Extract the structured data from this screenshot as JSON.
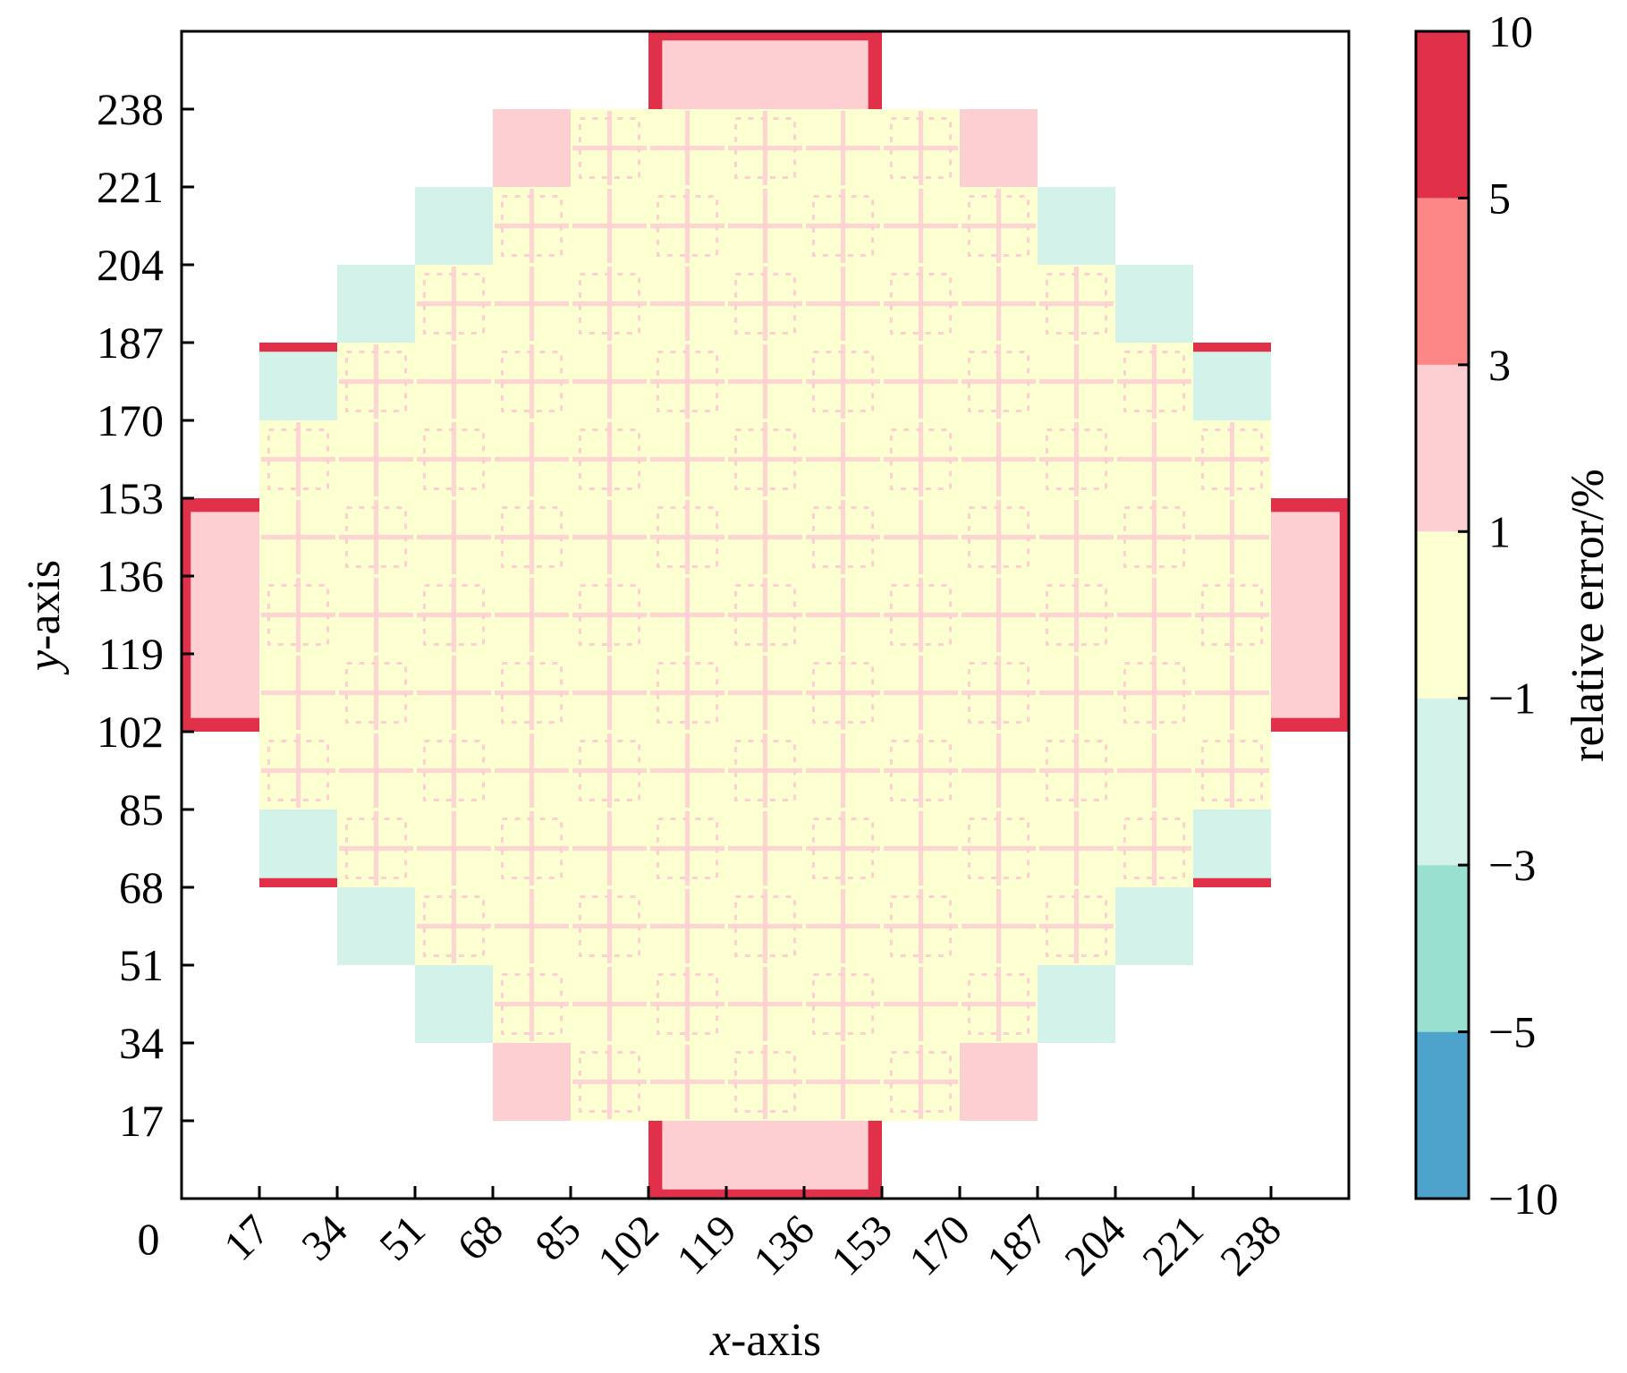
{
  "chart_data": {
    "type": "heatmap",
    "xlabel": {
      "italic": "x",
      "rest": "-axis"
    },
    "ylabel": {
      "italic": "y",
      "rest": "-axis"
    },
    "xlim": [
      0,
      255
    ],
    "ylim": [
      0,
      255
    ],
    "origin_label": "0",
    "xticks": [
      17,
      34,
      51,
      68,
      85,
      102,
      119,
      136,
      153,
      170,
      187,
      204,
      221,
      238
    ],
    "yticks": [
      17,
      34,
      51,
      68,
      85,
      102,
      119,
      136,
      153,
      170,
      187,
      204,
      221,
      238
    ],
    "xtick_labels": [
      "17",
      "34",
      "51",
      "68",
      "85",
      "102",
      "119",
      "136",
      "153",
      "170",
      "187",
      "204",
      "221",
      "238"
    ],
    "ytick_labels": [
      "17",
      "34",
      "51",
      "68",
      "85",
      "102",
      "119",
      "136",
      "153",
      "170",
      "187",
      "204",
      "221",
      "238"
    ],
    "assembly_size": 17,
    "colorbar": {
      "label": "relative error/%",
      "bounds": [
        -10,
        -5,
        -3,
        -1,
        1,
        3,
        5,
        10
      ],
      "tick_labels": [
        "−10",
        "−5",
        "−3",
        "−1",
        "1",
        "3",
        "5",
        "10"
      ],
      "colors": [
        "#4da3cc",
        "#99e0d1",
        "#d3f2e9",
        "#fcffd0",
        "#fdcfd3",
        "#fd8686",
        "#e0304a"
      ]
    },
    "rows": [
      {
        "y": [
          0,
          17
        ],
        "x": [
          102,
          153
        ]
      },
      {
        "y": [
          17,
          34
        ],
        "x": [
          68,
          187
        ]
      },
      {
        "y": [
          34,
          51
        ],
        "x": [
          51,
          204
        ]
      },
      {
        "y": [
          51,
          68
        ],
        "x": [
          34,
          221
        ]
      },
      {
        "y": [
          68,
          102
        ],
        "x": [
          17,
          238
        ]
      },
      {
        "y": [
          102,
          153
        ],
        "x": [
          0,
          255
        ]
      },
      {
        "y": [
          153,
          187
        ],
        "x": [
          17,
          238
        ]
      },
      {
        "y": [
          187,
          204
        ],
        "x": [
          34,
          221
        ]
      },
      {
        "y": [
          204,
          221
        ],
        "x": [
          51,
          204
        ]
      },
      {
        "y": [
          221,
          238
        ],
        "x": [
          68,
          187
        ]
      },
      {
        "y": [
          238,
          255
        ],
        "x": [
          102,
          153
        ]
      }
    ],
    "regions": [
      {
        "x": [
          102,
          153
        ],
        "y": [
          0,
          17
        ],
        "level": "1 to 3"
      },
      {
        "x": [
          102,
          153
        ],
        "y": [
          238,
          255
        ],
        "level": "1 to 3"
      },
      {
        "x": [
          0,
          17
        ],
        "y": [
          102,
          153
        ],
        "level": "1 to 3"
      },
      {
        "x": [
          238,
          255
        ],
        "y": [
          102,
          153
        ],
        "level": "1 to 3"
      },
      {
        "x": [
          68,
          85
        ],
        "y": [
          17,
          34
        ],
        "level": "1 to 3"
      },
      {
        "x": [
          170,
          187
        ],
        "y": [
          17,
          34
        ],
        "level": "1 to 3"
      },
      {
        "x": [
          68,
          85
        ],
        "y": [
          221,
          238
        ],
        "level": "1 to 3"
      },
      {
        "x": [
          170,
          187
        ],
        "y": [
          221,
          238
        ],
        "level": "1 to 3"
      },
      {
        "x": [
          51,
          68
        ],
        "y": [
          34,
          51
        ],
        "level": "-3 to -1"
      },
      {
        "x": [
          187,
          204
        ],
        "y": [
          34,
          51
        ],
        "level": "-3 to -1"
      },
      {
        "x": [
          51,
          68
        ],
        "y": [
          204,
          221
        ],
        "level": "-3 to -1"
      },
      {
        "x": [
          187,
          204
        ],
        "y": [
          204,
          221
        ],
        "level": "-3 to -1"
      },
      {
        "x": [
          34,
          51
        ],
        "y": [
          51,
          68
        ],
        "level": "-3 to -1"
      },
      {
        "x": [
          204,
          221
        ],
        "y": [
          51,
          68
        ],
        "level": "-3 to -1"
      },
      {
        "x": [
          34,
          51
        ],
        "y": [
          187,
          204
        ],
        "level": "-3 to -1"
      },
      {
        "x": [
          204,
          221
        ],
        "y": [
          187,
          204
        ],
        "level": "-3 to -1"
      },
      {
        "x": [
          17,
          34
        ],
        "y": [
          68,
          85
        ],
        "level": "-3 to -1"
      },
      {
        "x": [
          221,
          238
        ],
        "y": [
          68,
          85
        ],
        "level": "-3 to -1"
      },
      {
        "x": [
          17,
          34
        ],
        "y": [
          170,
          187
        ],
        "level": "-3 to -1"
      },
      {
        "x": [
          221,
          238
        ],
        "y": [
          170,
          187
        ],
        "level": "-3 to -1"
      }
    ],
    "edge_bands": [
      {
        "x": [
          102,
          153
        ],
        "y": [
          0,
          2
        ],
        "level": "5 to 10"
      },
      {
        "x": [
          102,
          153
        ],
        "y": [
          253,
          255
        ],
        "level": "5 to 10"
      },
      {
        "x": [
          0,
          2
        ],
        "y": [
          102,
          153
        ],
        "level": "5 to 10"
      },
      {
        "x": [
          253,
          255
        ],
        "y": [
          102,
          153
        ],
        "level": "5 to 10"
      },
      {
        "x": [
          0,
          17
        ],
        "y": [
          102,
          105
        ],
        "level": "5 to 10"
      },
      {
        "x": [
          0,
          17
        ],
        "y": [
          150,
          153
        ],
        "level": "5 to 10"
      },
      {
        "x": [
          238,
          255
        ],
        "y": [
          102,
          105
        ],
        "level": "5 to 10"
      },
      {
        "x": [
          238,
          255
        ],
        "y": [
          150,
          153
        ],
        "level": "5 to 10"
      },
      {
        "x": [
          102,
          105
        ],
        "y": [
          0,
          17
        ],
        "level": "5 to 10"
      },
      {
        "x": [
          150,
          153
        ],
        "y": [
          0,
          17
        ],
        "level": "5 to 10"
      },
      {
        "x": [
          102,
          105
        ],
        "y": [
          238,
          255
        ],
        "level": "5 to 10"
      },
      {
        "x": [
          150,
          153
        ],
        "y": [
          238,
          255
        ],
        "level": "5 to 10"
      },
      {
        "x": [
          17,
          34
        ],
        "y": [
          68,
          70
        ],
        "level": "5 to 10"
      },
      {
        "x": [
          221,
          238
        ],
        "y": [
          68,
          70
        ],
        "level": "5 to 10"
      },
      {
        "x": [
          17,
          34
        ],
        "y": [
          185,
          187
        ],
        "level": "5 to 10"
      },
      {
        "x": [
          221,
          238
        ],
        "y": [
          185,
          187
        ],
        "level": "5 to 10"
      }
    ],
    "grid": false
  }
}
